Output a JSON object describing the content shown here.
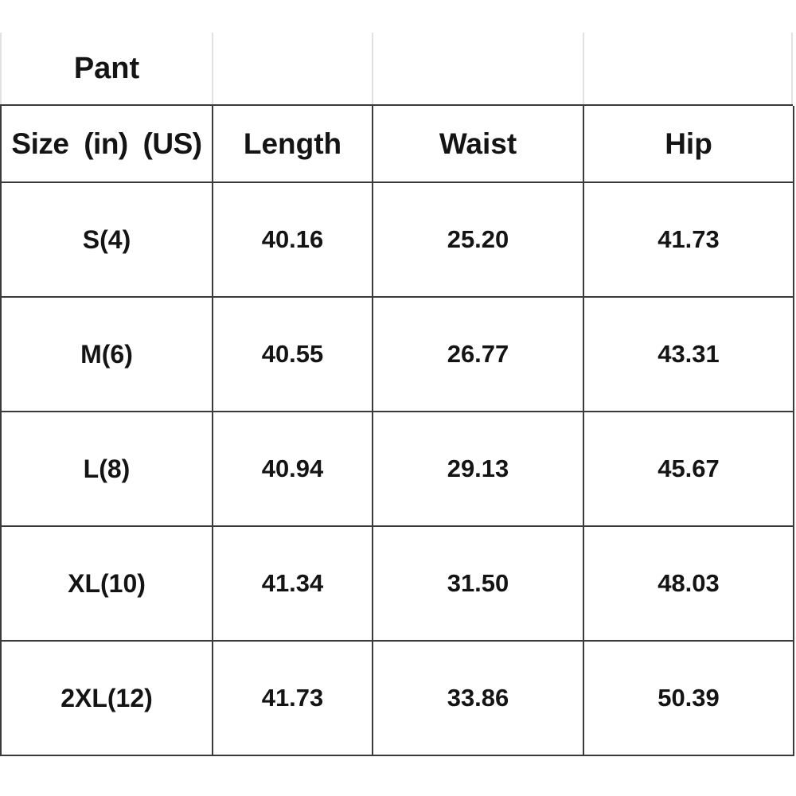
{
  "size_chart": {
    "category_label": "Pant",
    "headers": {
      "size": "Size (in) (US)",
      "length": "Length",
      "waist": "Waist",
      "hip": "Hip"
    },
    "rows": [
      {
        "size": "S(4)",
        "length": "40.16",
        "waist": "25.20",
        "hip": "41.73"
      },
      {
        "size": "M(6)",
        "length": "40.55",
        "waist": "26.77",
        "hip": "43.31"
      },
      {
        "size": "L(8)",
        "length": "40.94",
        "waist": "29.13",
        "hip": "45.67"
      },
      {
        "size": "XL(10)",
        "length": "41.34",
        "waist": "31.50",
        "hip": "48.03"
      },
      {
        "size": "2XL(12)",
        "length": "41.73",
        "waist": "33.86",
        "hip": "50.39"
      }
    ],
    "colors": {
      "grid_dark": "#3a3a3a",
      "grid_light": "#e1e1e1",
      "text": "#141414",
      "background": "#ffffff"
    }
  },
  "chart_data": {
    "type": "table",
    "title": "Pant",
    "columns": [
      "Size (in) (US)",
      "Length",
      "Waist",
      "Hip"
    ],
    "rows": [
      [
        "S(4)",
        40.16,
        25.2,
        41.73
      ],
      [
        "M(6)",
        40.55,
        26.77,
        43.31
      ],
      [
        "L(8)",
        40.94,
        29.13,
        45.67
      ],
      [
        "XL(10)",
        41.34,
        31.5,
        48.03
      ],
      [
        "2XL(12)",
        41.73,
        33.86,
        50.39
      ]
    ],
    "units": "in"
  }
}
